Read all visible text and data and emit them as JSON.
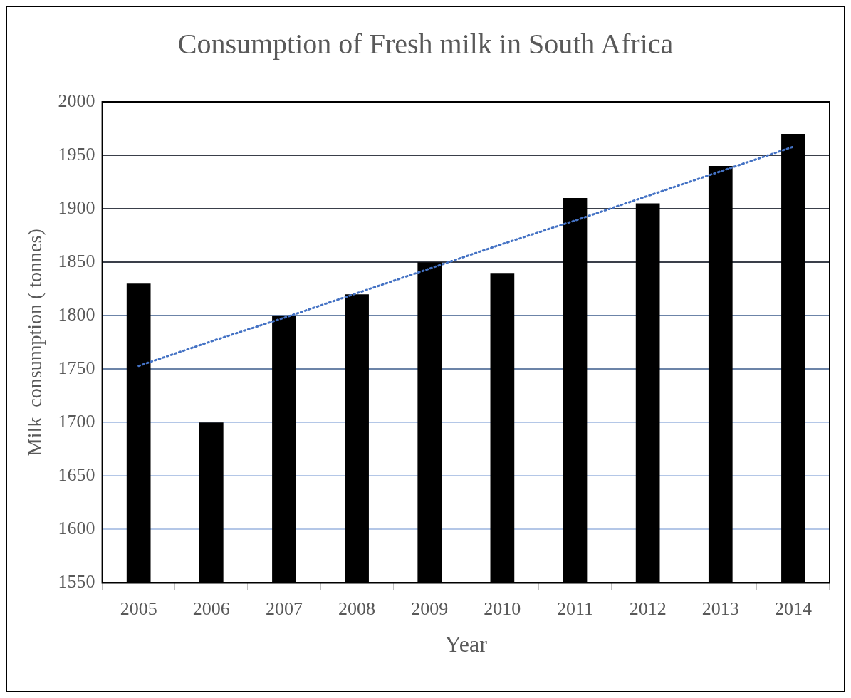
{
  "chart_data": {
    "type": "bar",
    "title": "Consumption of Fresh milk in South Africa",
    "xlabel": "Year",
    "ylabel": "Milk  consumption ( tonnes)",
    "categories": [
      "2005",
      "2006",
      "2007",
      "2008",
      "2009",
      "2010",
      "2011",
      "2012",
      "2013",
      "2014"
    ],
    "series": [
      {
        "color": "#000000",
        "values": [
          1830,
          1700,
          1800,
          1820,
          1850,
          1840,
          1910,
          1905,
          1940,
          1970
        ]
      },
      {
        "type": "line",
        "color": "#4472c4",
        "values": [
          1753,
          1776,
          1798,
          1821,
          1844,
          1867,
          1889,
          1912,
          1935,
          1958
        ],
        "line_style": "dotted",
        "marker": "none"
      }
    ],
    "ylim": [
      1550,
      2000
    ],
    "yticks": [
      1550,
      1600,
      1650,
      1700,
      1750,
      1800,
      1850,
      1900,
      1950,
      2000
    ],
    "grid": "y",
    "legend": false
  }
}
